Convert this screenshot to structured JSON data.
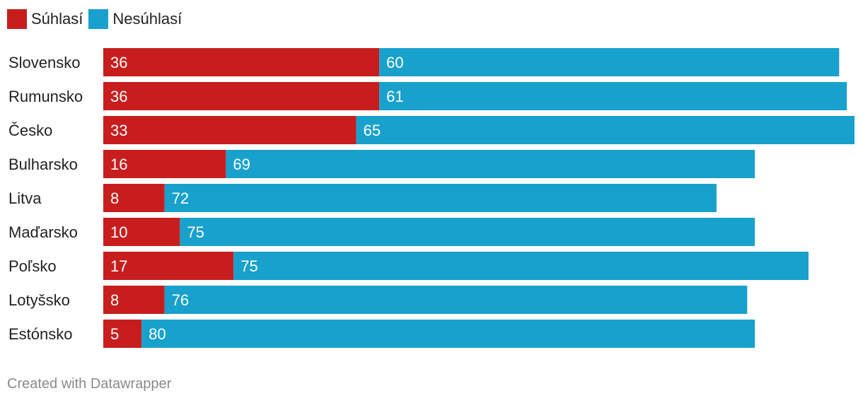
{
  "chart_data": {
    "type": "bar",
    "orientation": "horizontal",
    "stacked": true,
    "categories": [
      "Slovensko",
      "Rumunsko",
      "Česko",
      "Bulharsko",
      "Litva",
      "Maďarsko",
      "Poľsko",
      "Lotyšsko",
      "Estónsko"
    ],
    "series": [
      {
        "name": "Súhlasí",
        "color": "#c71e1d",
        "values": [
          36,
          36,
          33,
          16,
          8,
          10,
          17,
          8,
          5
        ]
      },
      {
        "name": "Nesúhlasí",
        "color": "#18a1cd",
        "values": [
          60,
          61,
          65,
          69,
          72,
          75,
          75,
          76,
          80
        ]
      }
    ],
    "xlim": [
      0,
      98
    ],
    "grid": false,
    "legend_position": "top-left"
  },
  "footer": {
    "credit": "Created with Datawrapper"
  }
}
